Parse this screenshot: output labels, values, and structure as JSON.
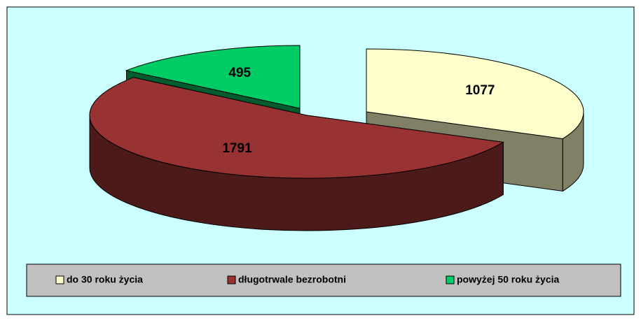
{
  "chart_data": {
    "type": "pie3d",
    "categories": [
      "do 30 roku życia",
      "długotrwale bezrobotni",
      "powyżej 50 roku życia"
    ],
    "values": [
      1077,
      1791,
      495
    ],
    "colors": [
      "#ffffcc",
      "#993333",
      "#00cc66"
    ],
    "legend": "bottom"
  }
}
